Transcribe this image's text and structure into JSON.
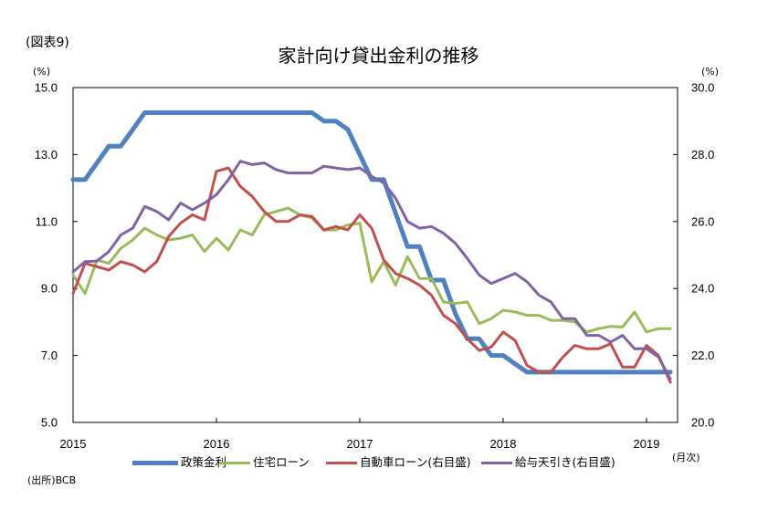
{
  "figure_label": "(図表9)",
  "chart_data": {
    "type": "line",
    "title": "家計向け貸出金利の推移",
    "y_left": {
      "unit": "(%)",
      "ylim": [
        5,
        15
      ],
      "ticks": [
        {
          "value": 5,
          "label": "5.0"
        },
        {
          "value": 7,
          "label": "7.0"
        },
        {
          "value": 9,
          "label": "9.0"
        },
        {
          "value": 11,
          "label": "11.0"
        },
        {
          "value": 13,
          "label": "13.0"
        },
        {
          "value": 15,
          "label": "15.0"
        }
      ]
    },
    "y_right": {
      "unit": "(%)",
      "ylim": [
        20,
        30
      ],
      "ticks": [
        {
          "value": 20,
          "label": "20.0"
        },
        {
          "value": 22,
          "label": "22.0"
        },
        {
          "value": 24,
          "label": "24.0"
        },
        {
          "value": 26,
          "label": "26.0"
        },
        {
          "value": 28,
          "label": "28.0"
        },
        {
          "value": 30,
          "label": "30.0"
        }
      ]
    },
    "x_ticks": [
      {
        "at": "2015-01",
        "label": "2015"
      },
      {
        "at": "2016-01",
        "label": "2016"
      },
      {
        "at": "2017-01",
        "label": "2017"
      },
      {
        "at": "2018-01",
        "label": "2018"
      },
      {
        "at": "2019-01",
        "label": "2019"
      }
    ],
    "x": [
      "2015-01",
      "2015-02",
      "2015-03",
      "2015-04",
      "2015-05",
      "2015-06",
      "2015-07",
      "2015-08",
      "2015-09",
      "2015-10",
      "2015-11",
      "2015-12",
      "2016-01",
      "2016-02",
      "2016-03",
      "2016-04",
      "2016-05",
      "2016-06",
      "2016-07",
      "2016-08",
      "2016-09",
      "2016-10",
      "2016-11",
      "2016-12",
      "2017-01",
      "2017-02",
      "2017-03",
      "2017-04",
      "2017-05",
      "2017-06",
      "2017-07",
      "2017-08",
      "2017-09",
      "2017-10",
      "2017-11",
      "2017-12",
      "2018-01",
      "2018-02",
      "2018-03",
      "2018-04",
      "2018-05",
      "2018-06",
      "2018-07",
      "2018-08",
      "2018-09",
      "2018-10",
      "2018-11",
      "2018-12",
      "2019-01",
      "2019-02",
      "2019-03"
    ],
    "series": [
      {
        "name": "政策金利",
        "axis": "left",
        "color": "#4f81bd",
        "values": [
          12.25,
          12.25,
          12.75,
          13.25,
          13.25,
          13.75,
          14.25,
          14.25,
          14.25,
          14.25,
          14.25,
          14.25,
          14.25,
          14.25,
          14.25,
          14.25,
          14.25,
          14.25,
          14.25,
          14.25,
          14.25,
          14.0,
          14.0,
          13.75,
          13.0,
          12.25,
          12.25,
          11.25,
          10.25,
          10.25,
          9.25,
          9.25,
          8.25,
          7.5,
          7.5,
          7.0,
          7.0,
          6.75,
          6.5,
          6.5,
          6.5,
          6.5,
          6.5,
          6.5,
          6.5,
          6.5,
          6.5,
          6.5,
          6.5,
          6.5,
          6.5
        ]
      },
      {
        "name": "住宅ローン",
        "axis": "left",
        "color": "#9bbb59",
        "values": [
          9.4,
          8.85,
          9.85,
          9.75,
          10.2,
          10.45,
          10.8,
          10.6,
          10.45,
          10.5,
          10.6,
          10.1,
          10.5,
          10.15,
          10.75,
          10.6,
          11.2,
          11.3,
          11.4,
          11.2,
          11.1,
          10.75,
          10.75,
          10.9,
          10.95,
          9.2,
          9.8,
          9.1,
          9.95,
          9.3,
          9.3,
          8.6,
          8.55,
          8.6,
          7.95,
          8.1,
          8.35,
          8.3,
          8.2,
          8.2,
          8.05,
          8.05,
          8.0,
          7.7,
          7.8,
          7.87,
          7.85,
          8.3,
          7.7,
          7.8,
          7.8
        ]
      },
      {
        "name": "自動車ローン(右目盛)",
        "axis": "right",
        "color": "#c0504d",
        "values": [
          23.85,
          24.75,
          24.65,
          24.55,
          24.8,
          24.7,
          24.5,
          24.8,
          25.55,
          25.95,
          26.2,
          26.05,
          27.5,
          27.6,
          27.05,
          26.75,
          26.3,
          26.0,
          26.0,
          26.2,
          26.15,
          25.75,
          25.85,
          25.75,
          26.2,
          25.8,
          24.85,
          24.45,
          24.3,
          24.1,
          23.8,
          23.2,
          22.95,
          22.5,
          22.15,
          22.25,
          22.7,
          22.45,
          21.7,
          21.5,
          21.5,
          21.95,
          22.3,
          22.2,
          22.2,
          22.35,
          21.65,
          21.65,
          22.3,
          22.0,
          21.2
        ]
      },
      {
        "name": "給与天引き(右目盛)",
        "axis": "right",
        "color": "#8064a2",
        "values": [
          24.5,
          24.8,
          24.82,
          25.1,
          25.6,
          25.8,
          26.45,
          26.3,
          26.05,
          26.55,
          26.35,
          26.55,
          26.8,
          27.25,
          27.8,
          27.7,
          27.75,
          27.55,
          27.45,
          27.45,
          27.45,
          27.65,
          27.6,
          27.55,
          27.6,
          27.35,
          27.15,
          26.7,
          26.0,
          25.8,
          25.85,
          25.65,
          25.35,
          24.9,
          24.4,
          24.15,
          24.3,
          24.45,
          24.2,
          23.8,
          23.6,
          23.1,
          23.1,
          22.6,
          22.6,
          22.4,
          22.6,
          22.2,
          22.2,
          21.95,
          21.3
        ]
      }
    ],
    "note": "(月次)",
    "source": "(出所)BCB",
    "legend_position": "bottom",
    "grid": false
  }
}
